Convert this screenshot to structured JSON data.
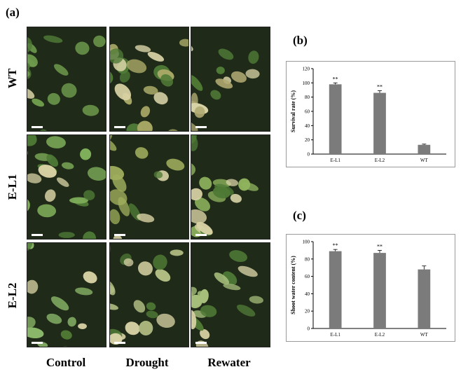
{
  "panels": {
    "a": "(a)",
    "b": "(b)",
    "c": "(c)"
  },
  "rows": [
    "WT",
    "E-L1",
    "E-L2"
  ],
  "columns": [
    "Control",
    "Drought",
    "Rewater"
  ],
  "photo_tones": {
    "WT": [
      "#6f9c4d",
      "#a8a866",
      "#b0aa72"
    ],
    "E-L1": [
      "#7fae5a",
      "#9fae5c",
      "#8fb45e"
    ],
    "E-L2": [
      "#8bb86a",
      "#b3bf84",
      "#a5be7a"
    ]
  },
  "chart_data": [
    {
      "type": "bar",
      "panel": "(b)",
      "categories": [
        "E-L1",
        "E-L2",
        "WT"
      ],
      "values": [
        98,
        86,
        13
      ],
      "errors": [
        2,
        3,
        1
      ],
      "significance": [
        "**",
        "**",
        ""
      ],
      "ylabel": "Survival rate (%)",
      "ylim": [
        0,
        120
      ],
      "yticks": [
        0,
        20,
        40,
        60,
        80,
        100,
        120
      ],
      "bar_color": "#7b7b7b"
    },
    {
      "type": "bar",
      "panel": "(c)",
      "categories": [
        "E-L1",
        "E-L2",
        "WT"
      ],
      "values": [
        89,
        87,
        68
      ],
      "errors": [
        2,
        3,
        4
      ],
      "significance": [
        "**",
        "**",
        ""
      ],
      "ylabel": "Shoot water content (%)",
      "ylim": [
        0,
        100
      ],
      "yticks": [
        0,
        20,
        40,
        60,
        80,
        100
      ],
      "bar_color": "#7b7b7b"
    }
  ]
}
